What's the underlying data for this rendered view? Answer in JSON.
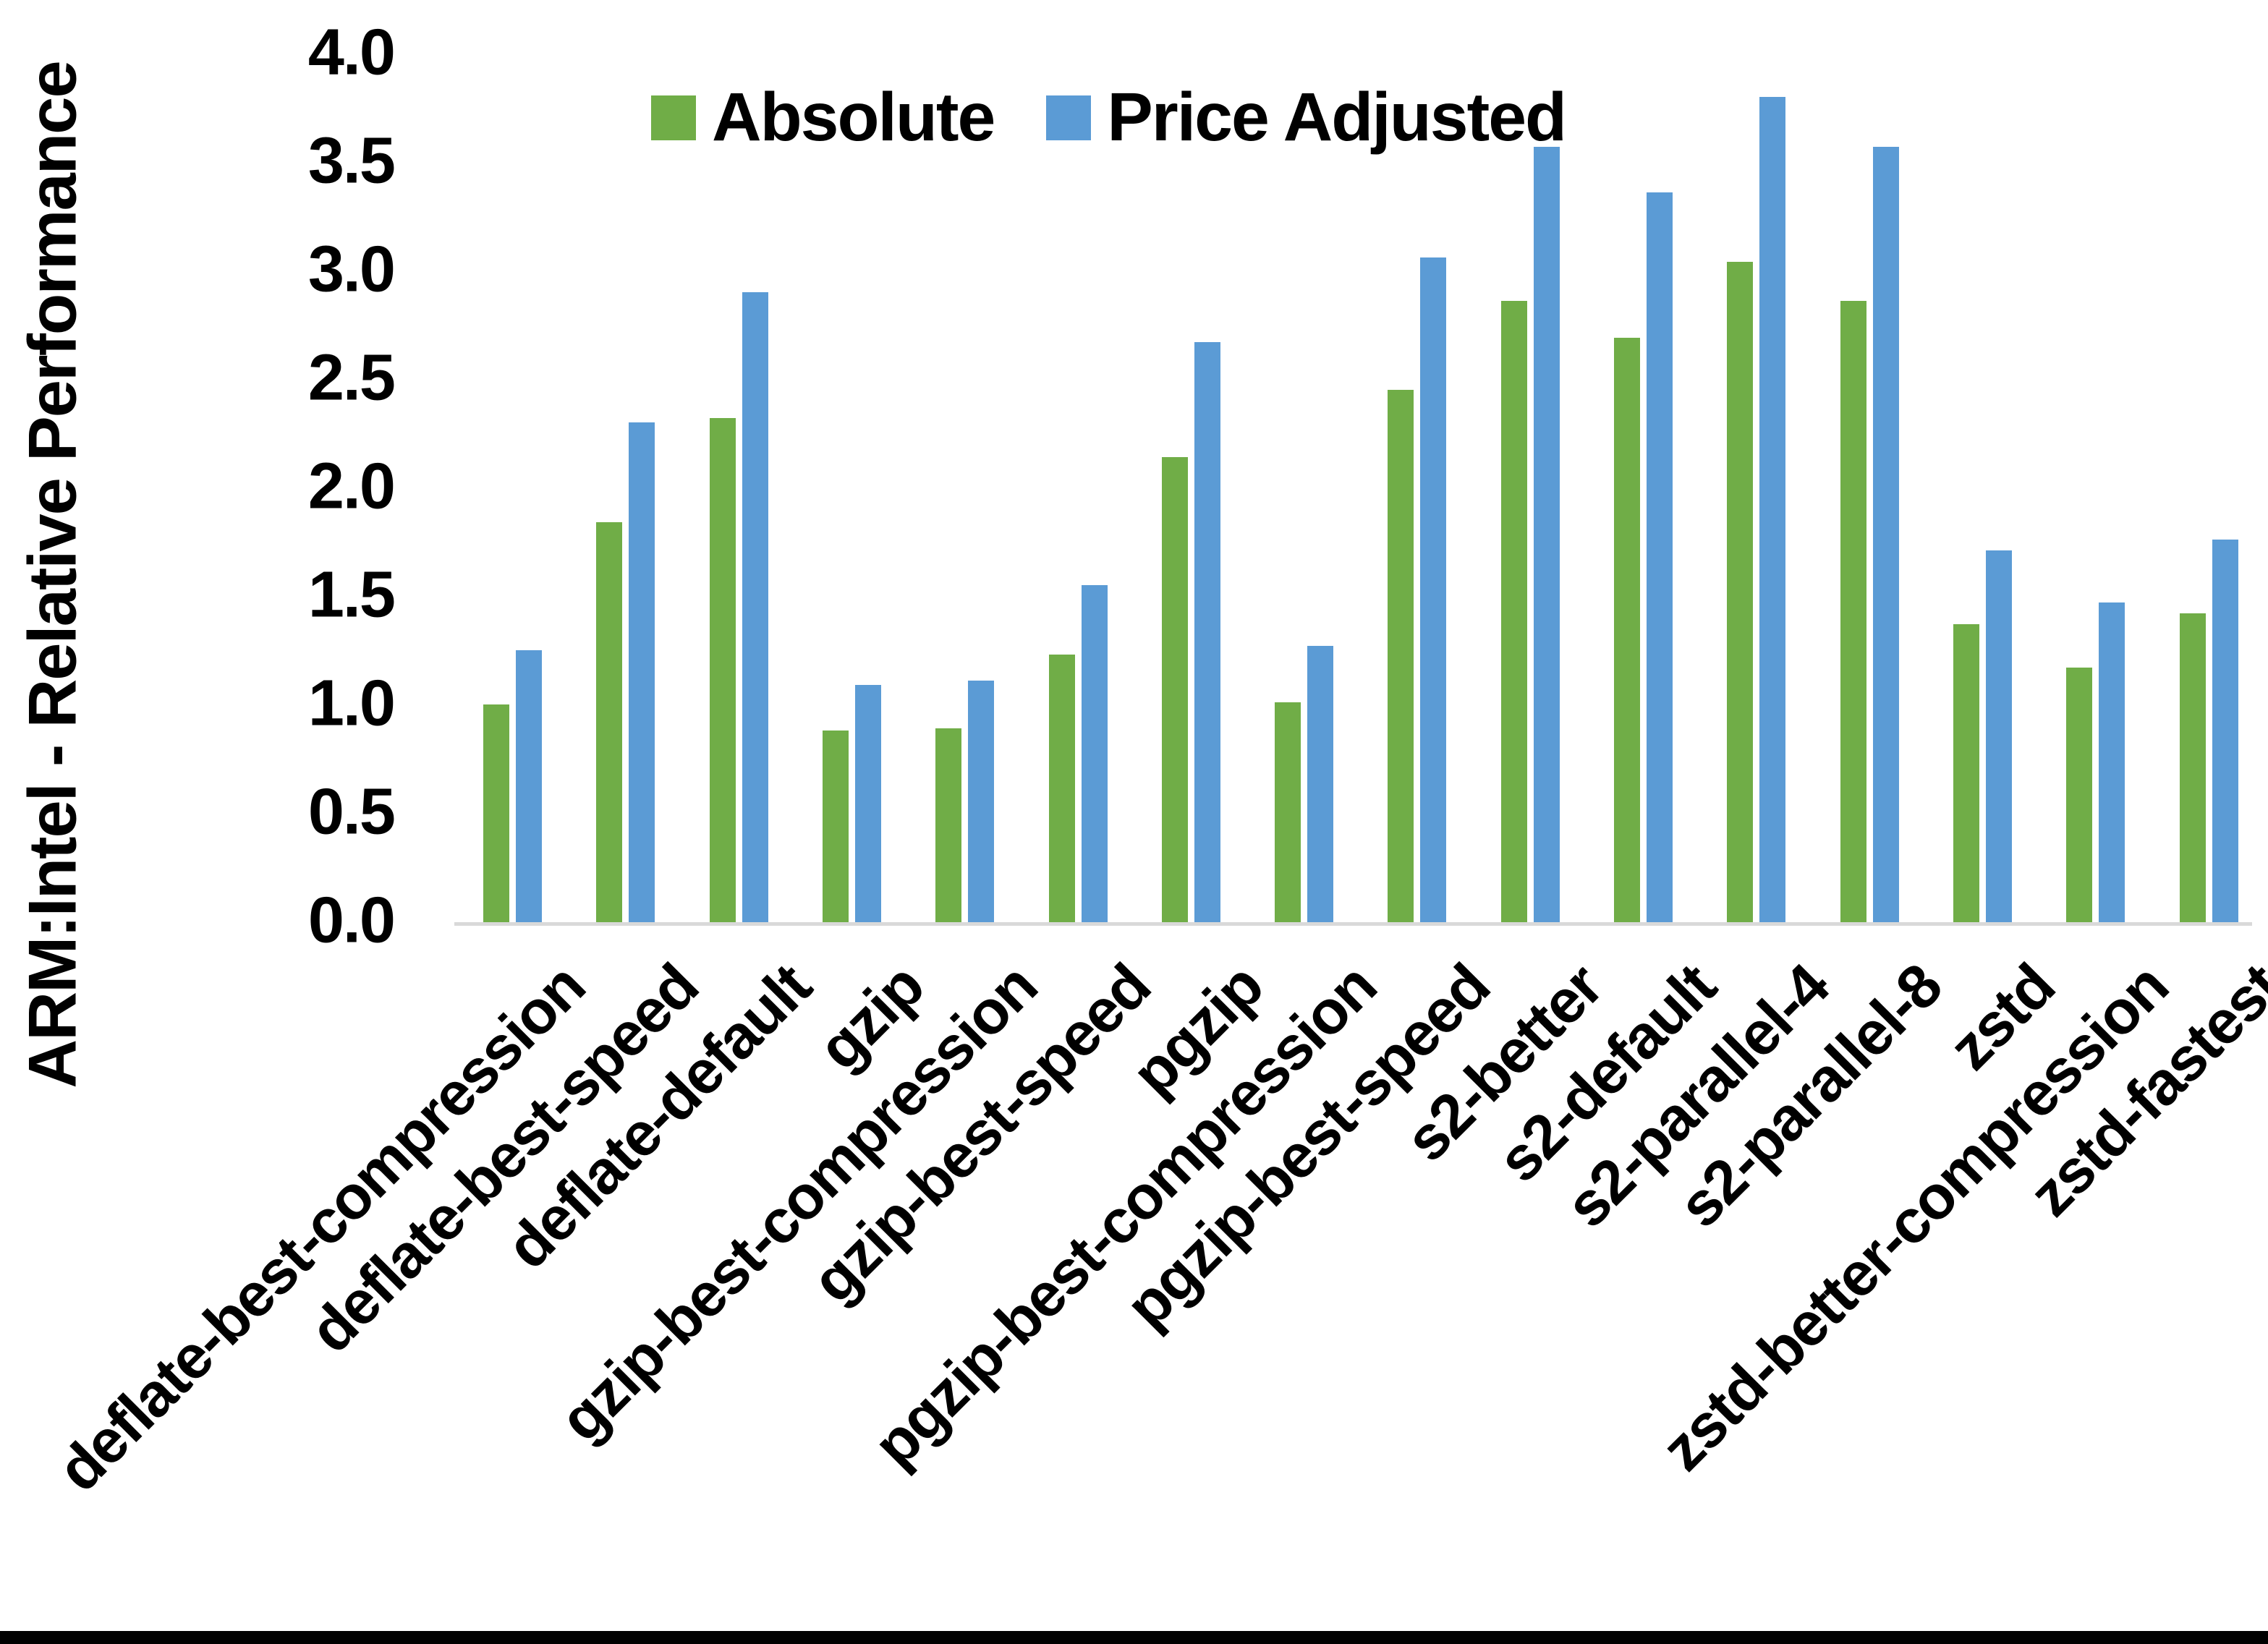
{
  "chart_data": {
    "type": "bar",
    "title": "",
    "xlabel": "",
    "ylabel": "ARM:Intel - Relative Performance",
    "ylim": [
      0.0,
      4.0
    ],
    "ytick_step": 0.5,
    "yticks": [
      "0.0",
      "0.5",
      "1.0",
      "1.5",
      "2.0",
      "2.5",
      "3.0",
      "3.5",
      "4.0"
    ],
    "grid": false,
    "legend_position": "top-center",
    "categories": [
      "deflate-best-compression",
      "deflate-best-speed",
      "deflate-default",
      "gzip",
      "gzip-best-compression",
      "gzip-best-speed",
      "pgzip",
      "pgzip-best-compression",
      "pgzip-best-speed",
      "s2-better",
      "s2-default",
      "s2-parallel-4",
      "s2-parallel-8",
      "zstd",
      "zstd-better-compression",
      "zstd-fastest"
    ],
    "series": [
      {
        "name": "Absolute",
        "color": "#70AD47",
        "values": [
          1.01,
          1.85,
          2.33,
          0.89,
          0.9,
          1.24,
          2.15,
          1.02,
          2.46,
          2.87,
          2.7,
          3.05,
          2.87,
          1.38,
          1.18,
          1.43
        ]
      },
      {
        "name": "Price Adjusted",
        "color": "#5B9BD5",
        "values": [
          1.26,
          2.31,
          2.91,
          1.1,
          1.12,
          1.56,
          2.68,
          1.28,
          3.07,
          3.58,
          3.37,
          3.81,
          3.58,
          1.72,
          1.48,
          1.77
        ]
      }
    ]
  },
  "colors": {
    "background": "#FFFFFF",
    "axis_line": "#D9D9D9",
    "text": "#000000",
    "bottom_border": "#000000"
  }
}
